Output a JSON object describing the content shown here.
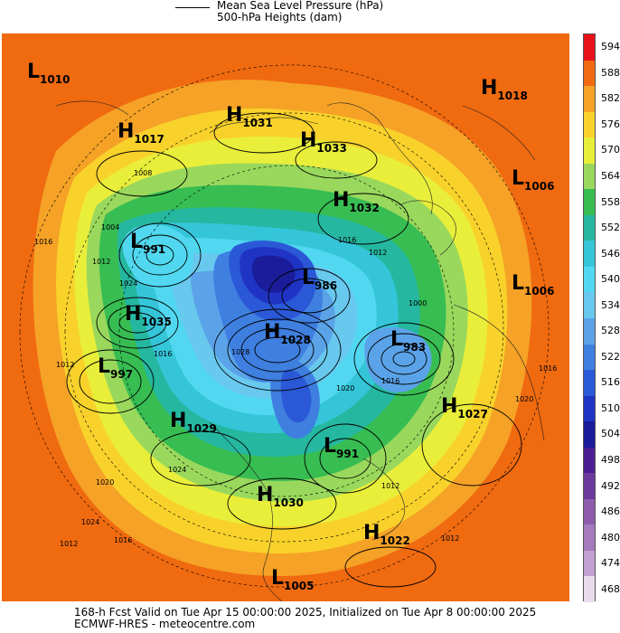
{
  "legend": {
    "line1": "Mean Sea Level Pressure (hPa)",
    "line2": "500-hPa Heights (dam)"
  },
  "colorbar": {
    "levels": [
      "594",
      "588",
      "582",
      "576",
      "570",
      "564",
      "558",
      "552",
      "546",
      "540",
      "534",
      "528",
      "522",
      "516",
      "510",
      "504",
      "498",
      "492",
      "486",
      "480",
      "474",
      "468"
    ],
    "colors": [
      "#e8111b",
      "#f06a10",
      "#f5a226",
      "#f8d22b",
      "#e9ee3a",
      "#99d85c",
      "#37bd52",
      "#25b7a0",
      "#35c5d8",
      "#51d8f0",
      "#68c8ee",
      "#5ba3e8",
      "#3e7fe0",
      "#2b58d6",
      "#1f34c4",
      "#1a1c9a",
      "#4b1e93",
      "#6c3a9e",
      "#8e5cad",
      "#a57bbd",
      "#c3a1d0",
      "#e8dced"
    ]
  },
  "pressure_centers": [
    {
      "type": "L",
      "value": "1010"
    },
    {
      "type": "H",
      "value": "1017"
    },
    {
      "type": "H",
      "value": "1031"
    },
    {
      "type": "H",
      "value": "1033"
    },
    {
      "type": "H",
      "value": "1018"
    },
    {
      "type": "L",
      "value": "1006"
    },
    {
      "type": "H",
      "value": "1032"
    },
    {
      "type": "L",
      "value": "991"
    },
    {
      "type": "L",
      "value": "986"
    },
    {
      "type": "L",
      "value": "1006"
    },
    {
      "type": "H",
      "value": "1035"
    },
    {
      "type": "H",
      "value": "1028"
    },
    {
      "type": "L",
      "value": "983"
    },
    {
      "type": "L",
      "value": "997"
    },
    {
      "type": "H",
      "value": "1027"
    },
    {
      "type": "H",
      "value": "1029"
    },
    {
      "type": "L",
      "value": "991"
    },
    {
      "type": "H",
      "value": "1030"
    },
    {
      "type": "H",
      "value": "1022"
    },
    {
      "type": "L",
      "value": "1005"
    }
  ],
  "isobar_labels": [
    "1008",
    "1004",
    "1012",
    "1016",
    "1024",
    "1016",
    "1012",
    "1016",
    "1012",
    "1020",
    "1024",
    "1020",
    "1016",
    "1012",
    "1000",
    "1016",
    "1020",
    "1012",
    "1024",
    "1016",
    "1012",
    "1028"
  ],
  "footer": {
    "line1": "168-h Fcst Valid on Tue Apr 15 00:00:00 2025, Initialized on Tue Apr  8 00:00:00 2025",
    "line2": "ECMWF-HRES - meteocentre.com"
  }
}
